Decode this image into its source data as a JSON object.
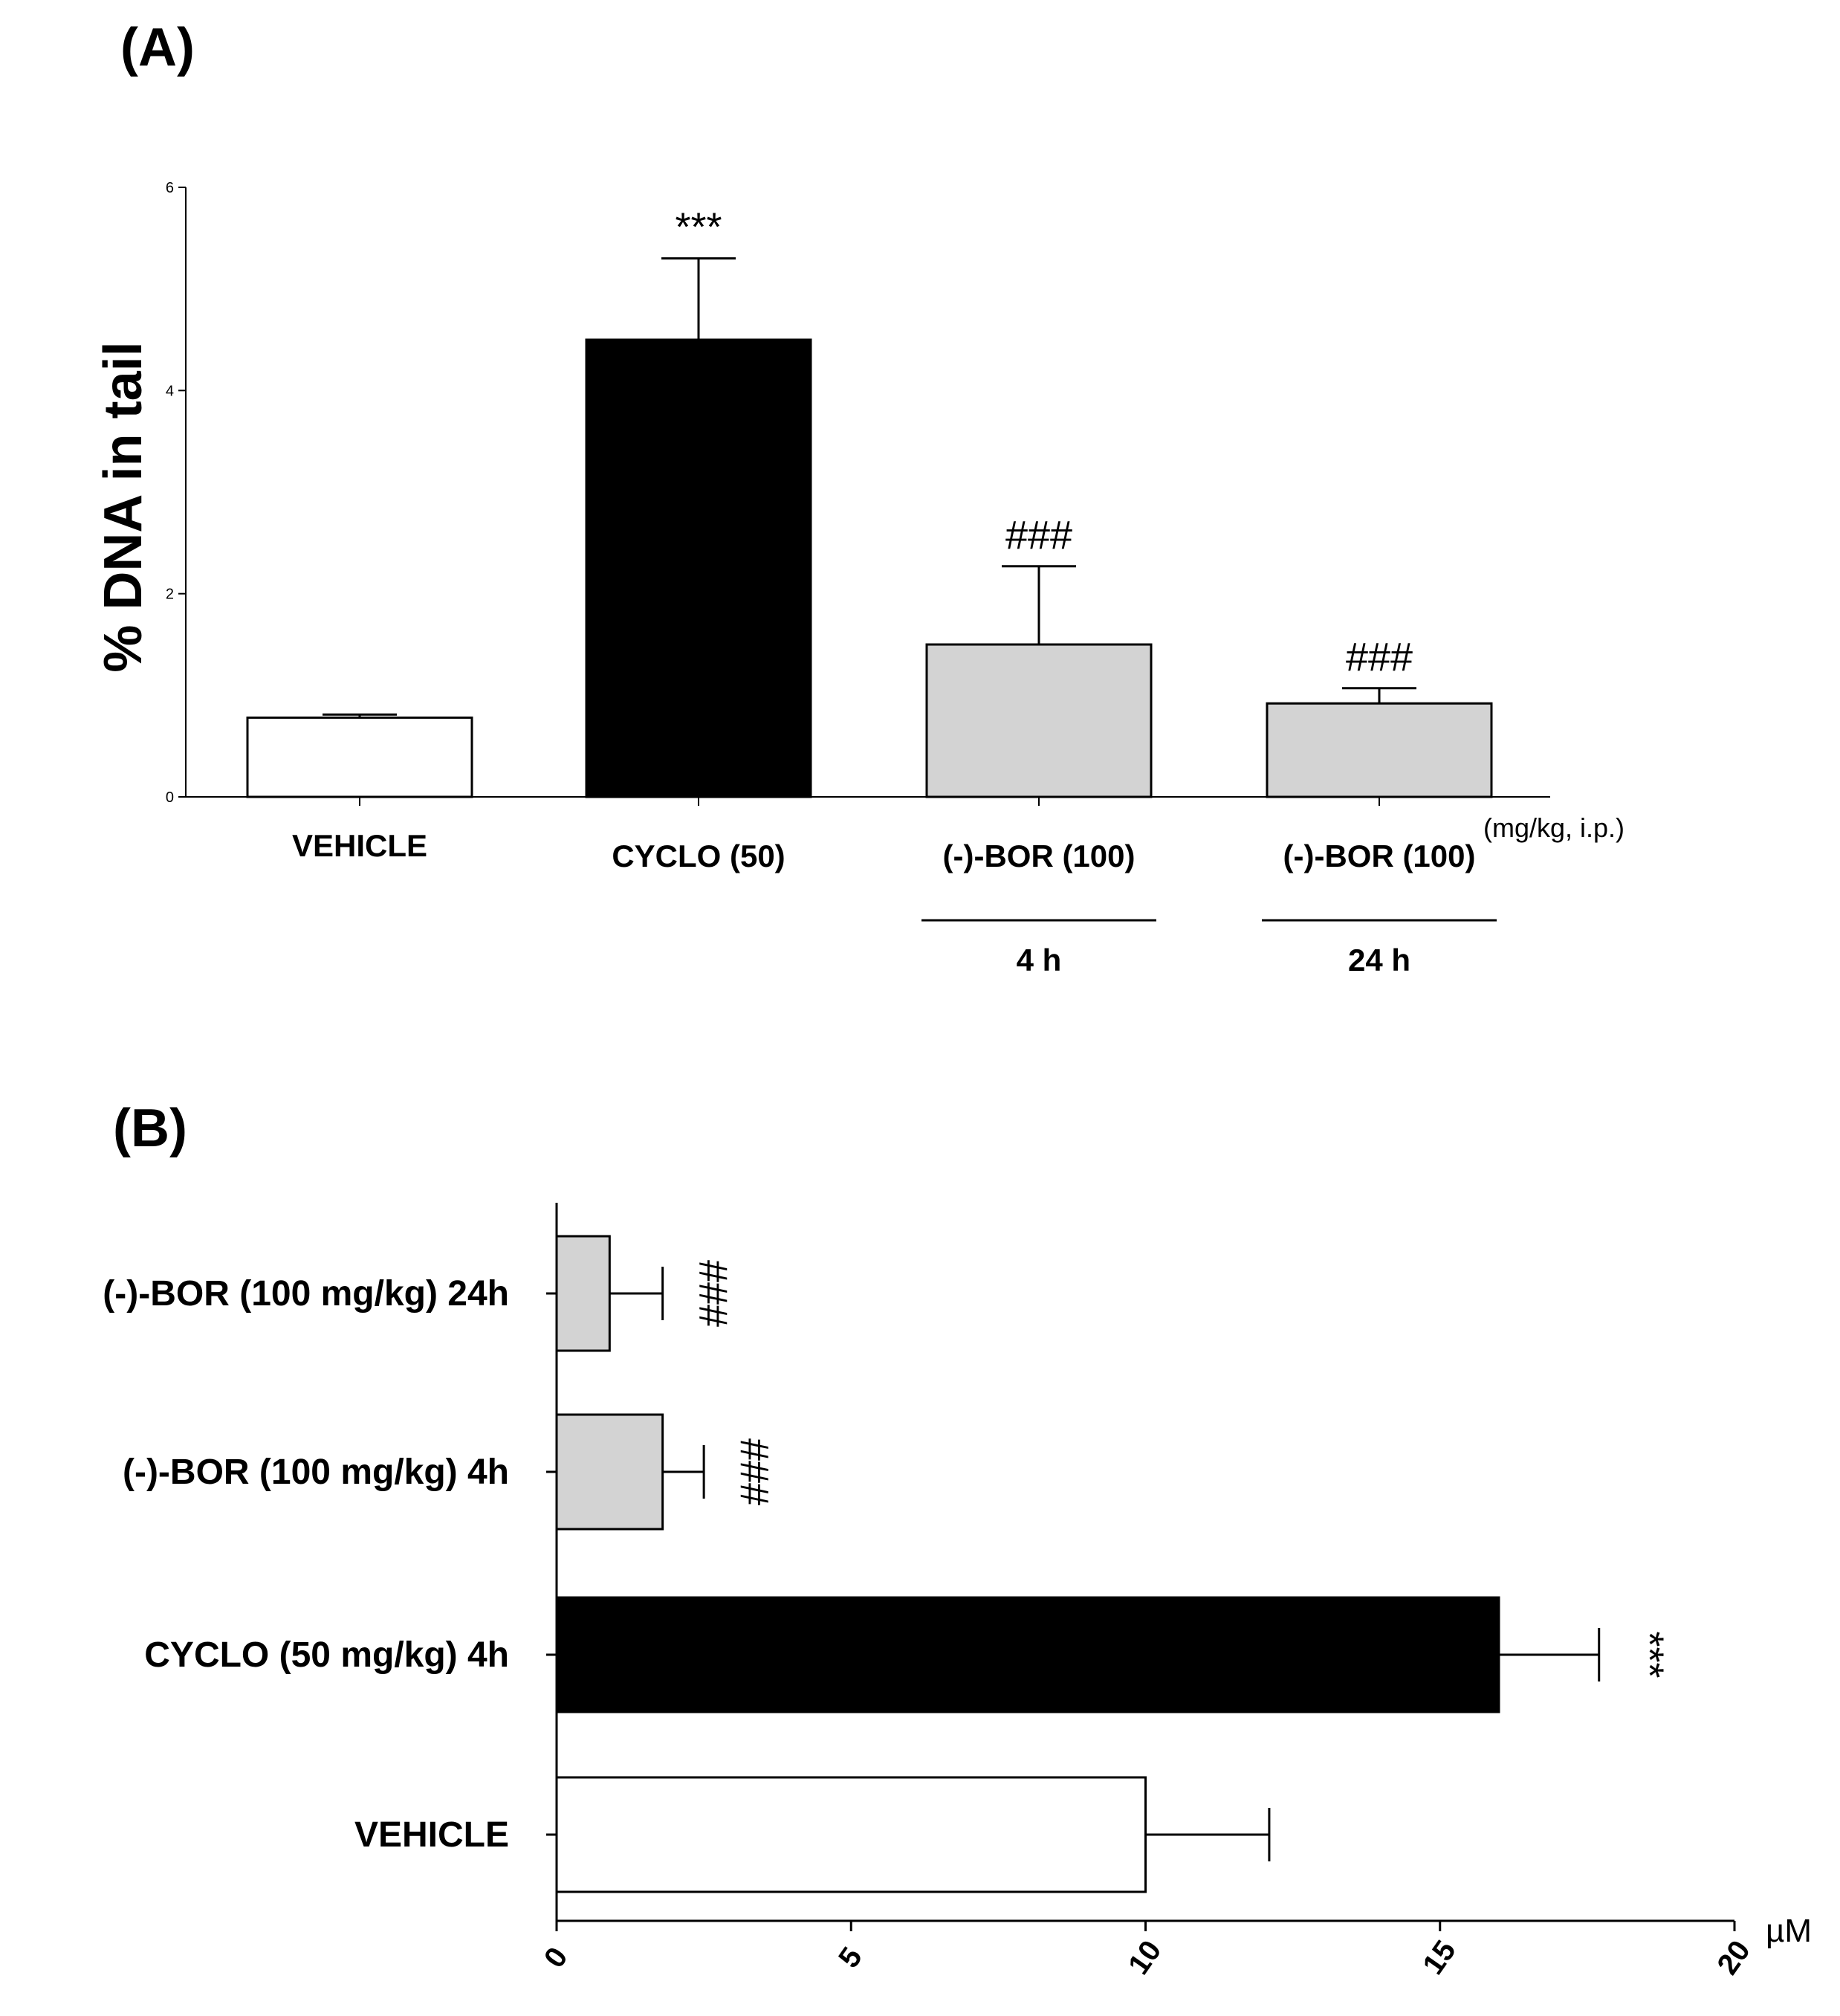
{
  "colors": {
    "white": "#ffffff",
    "black": "#000000",
    "gray": "#d3d3d3"
  },
  "chart_data": [
    {
      "panel": "(A)",
      "type": "bar",
      "orientation": "vertical",
      "ylabel": "% DNA in tail",
      "ylim": [
        0,
        6
      ],
      "yticks": [
        "0",
        "2",
        "4",
        "6"
      ],
      "unit_note": "(mg/kg, i.p.)",
      "categories": [
        "VEHICLE",
        "CYCLO (50)",
        "(-)-BOR (100)",
        "(-)-BOR (100)"
      ],
      "sublabels": [
        "",
        "",
        "4 h",
        "24 h"
      ],
      "values": [
        0.78,
        4.5,
        1.5,
        0.92
      ],
      "errors": [
        0.03,
        0.8,
        0.77,
        0.15
      ],
      "colors": [
        "#ffffff",
        "#000000",
        "#d3d3d3",
        "#d3d3d3"
      ],
      "annotations": [
        "",
        "***",
        "###",
        "###"
      ]
    },
    {
      "panel": "(B)",
      "type": "bar",
      "orientation": "horizontal",
      "xlabel": "µM",
      "xlim": [
        0,
        20
      ],
      "xticks": [
        "0",
        "5",
        "10",
        "15",
        "20"
      ],
      "categories": [
        "(-)-BOR (100 mg/kg) 24h",
        "(-)-BOR (100 mg/kg) 4h",
        "CYCLO (50 mg/kg) 4h",
        "VEHICLE"
      ],
      "values": [
        0.9,
        1.8,
        16.0,
        10.0
      ],
      "errors": [
        0.9,
        0.7,
        1.7,
        2.1
      ],
      "colors": [
        "#d3d3d3",
        "#d3d3d3",
        "#000000",
        "#ffffff"
      ],
      "annotations": [
        "###",
        "###",
        "***",
        ""
      ]
    }
  ]
}
